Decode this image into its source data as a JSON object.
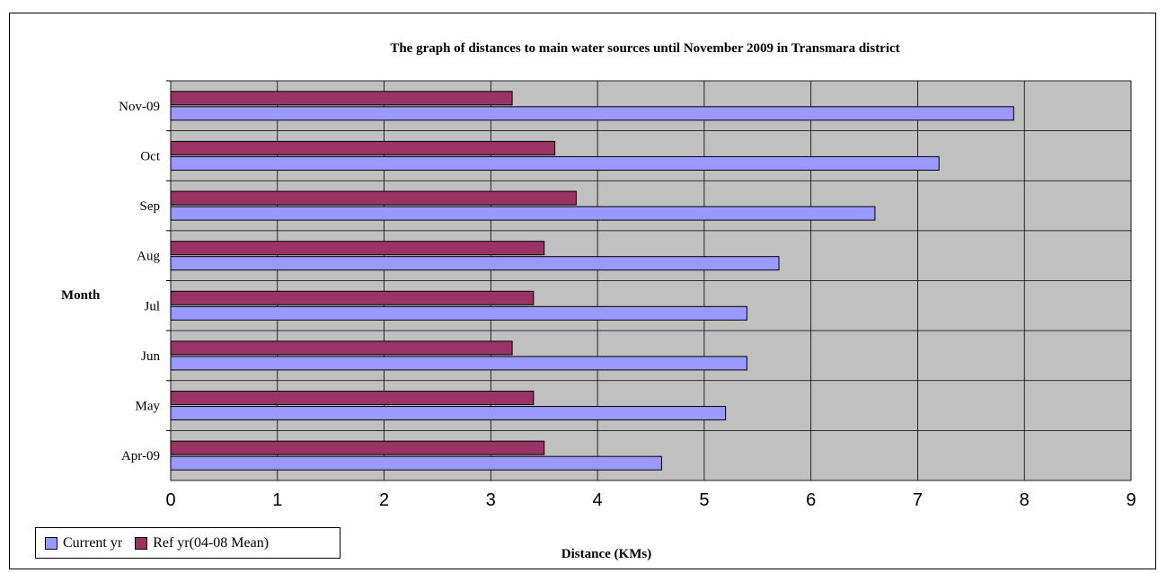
{
  "chart_data": {
    "type": "bar",
    "orientation": "horizontal",
    "title": "The graph of distances to main water sources until November 2009 in Transmara district",
    "xlabel": "Distance (KMs)",
    "ylabel": "Month",
    "categories": [
      "Apr-09",
      "May",
      "Jun",
      "Jul",
      "Aug",
      "Sep",
      "Oct",
      "Nov-09"
    ],
    "series": [
      {
        "name": "Current yr",
        "color": "#9999ff",
        "values": [
          4.6,
          5.2,
          5.4,
          5.4,
          5.7,
          6.6,
          7.2,
          7.9
        ]
      },
      {
        "name": "Ref yr(04-08 Mean)",
        "color": "#993366",
        "values": [
          3.5,
          3.4,
          3.2,
          3.4,
          3.5,
          3.8,
          3.6,
          3.2
        ]
      }
    ],
    "xlim": [
      0,
      9
    ],
    "xticks": [
      "0",
      "1",
      "2",
      "3",
      "4",
      "5",
      "6",
      "7",
      "8",
      "9"
    ],
    "grid": true,
    "plot_background": "#c0c0c0",
    "legend_position": "bottom-left"
  }
}
